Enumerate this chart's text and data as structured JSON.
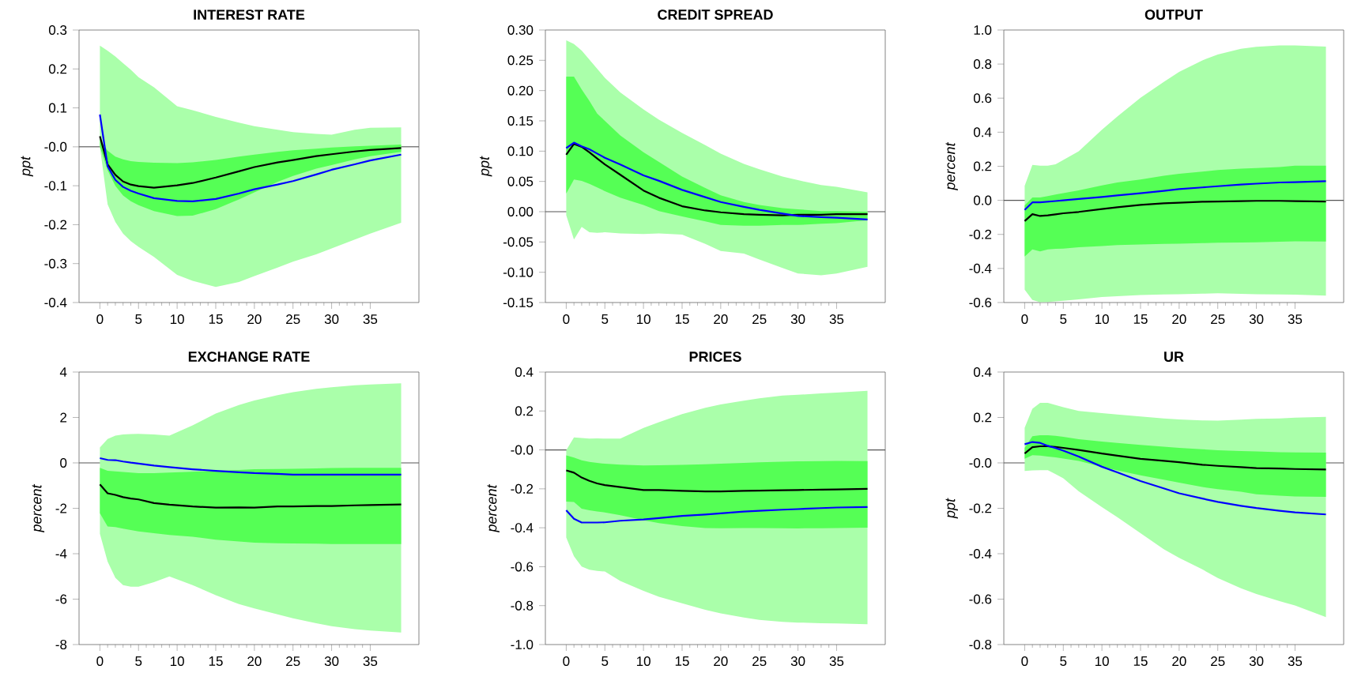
{
  "chart_data": [
    {
      "type": "line",
      "title": "INTEREST RATE",
      "ylabel": "ppt",
      "x": [
        0,
        1,
        2,
        3,
        4,
        5,
        7,
        10,
        12,
        15,
        18,
        20,
        23,
        25,
        28,
        30,
        33,
        35,
        39
      ],
      "xlim": [
        -2.7,
        41.3
      ],
      "xticks": [
        0,
        5,
        10,
        15,
        20,
        25,
        30,
        35
      ],
      "ylim": [
        -0.4,
        0.3
      ],
      "yticks": [
        {
          "value": -0.4,
          "label": "-0.4"
        },
        {
          "value": -0.3,
          "label": "-0.3"
        },
        {
          "value": -0.2,
          "label": "-0.2"
        },
        {
          "value": -0.1,
          "label": "-0.1"
        },
        {
          "value": 0,
          "label": "-0.0"
        },
        {
          "value": 0.1,
          "label": "0.1"
        },
        {
          "value": 0.2,
          "label": "0.2"
        },
        {
          "value": 0.3,
          "label": "0.3"
        }
      ],
      "ref_lines": [
        {
          "axis": "y",
          "value": 0,
          "color": "#555555"
        }
      ],
      "series": [
        {
          "color": "#aaffaa",
          "values": [
            null,
            null,
            null,
            null,
            null,
            null,
            null,
            null,
            null,
            null,
            null,
            null,
            null,
            null,
            null,
            null,
            null,
            null,
            null
          ],
          "upper": [
            0.26,
            0.247,
            0.232,
            0.215,
            0.198,
            0.179,
            0.153,
            0.104,
            0.094,
            0.077,
            0.062,
            0.053,
            0.044,
            0.038,
            0.033,
            0.031,
            0.044,
            0.049,
            0.05
          ],
          "lower": [
            0.0,
            -0.148,
            -0.193,
            -0.223,
            -0.242,
            -0.257,
            -0.283,
            -0.329,
            -0.344,
            -0.36,
            -0.347,
            -0.332,
            -0.31,
            -0.295,
            -0.276,
            -0.261,
            -0.238,
            -0.223,
            -0.195
          ]
        },
        {
          "color": "#55ff55",
          "values": [
            null,
            null,
            null,
            null,
            null,
            null,
            null,
            null,
            null,
            null,
            null,
            null,
            null,
            null,
            null,
            null,
            null,
            null,
            null
          ],
          "upper": [
            0.02,
            -0.01,
            -0.025,
            -0.032,
            -0.037,
            -0.039,
            -0.041,
            -0.042,
            -0.04,
            -0.034,
            -0.025,
            -0.02,
            -0.013,
            -0.009,
            -0.005,
            -0.002,
            0.001,
            0.003,
            0.006
          ],
          "lower": [
            0.0,
            -0.06,
            -0.1,
            -0.125,
            -0.14,
            -0.15,
            -0.165,
            -0.178,
            -0.177,
            -0.16,
            -0.135,
            -0.117,
            -0.09,
            -0.075,
            -0.056,
            -0.047,
            -0.032,
            -0.024,
            -0.013
          ]
        },
        {
          "color": "#000000",
          "values": [
            0.027,
            -0.045,
            -0.072,
            -0.089,
            -0.097,
            -0.101,
            -0.105,
            -0.099,
            -0.093,
            -0.079,
            -0.063,
            -0.052,
            -0.04,
            -0.034,
            -0.024,
            -0.019,
            -0.012,
            -0.008,
            -0.003
          ]
        },
        {
          "color": "#0000ff",
          "values": [
            0.083,
            -0.05,
            -0.085,
            -0.103,
            -0.113,
            -0.12,
            -0.132,
            -0.139,
            -0.14,
            -0.134,
            -0.12,
            -0.109,
            -0.097,
            -0.088,
            -0.071,
            -0.059,
            -0.045,
            -0.035,
            -0.02
          ]
        }
      ]
    },
    {
      "type": "line",
      "title": "CREDIT SPREAD",
      "ylabel": "ppt",
      "x": [
        0,
        1,
        2,
        3,
        4,
        5,
        7,
        10,
        12,
        15,
        18,
        20,
        23,
        25,
        28,
        30,
        33,
        35,
        39
      ],
      "xlim": [
        -2.7,
        41.3
      ],
      "xticks": [
        0,
        5,
        10,
        15,
        20,
        25,
        30,
        35
      ],
      "ylim": [
        -0.15,
        0.3
      ],
      "yticks": [
        {
          "value": -0.15,
          "label": "-0.15"
        },
        {
          "value": -0.1,
          "label": "-0.10"
        },
        {
          "value": -0.05,
          "label": "-0.05"
        },
        {
          "value": 0,
          "label": "0.00"
        },
        {
          "value": 0.05,
          "label": "0.05"
        },
        {
          "value": 0.1,
          "label": "0.10"
        },
        {
          "value": 0.15,
          "label": "0.15"
        },
        {
          "value": 0.2,
          "label": "0.20"
        },
        {
          "value": 0.25,
          "label": "0.25"
        },
        {
          "value": 0.3,
          "label": "0.30"
        }
      ],
      "ref_lines": [
        {
          "axis": "y",
          "value": 0,
          "color": "#555555"
        }
      ],
      "series": [
        {
          "color": "#aaffaa",
          "values": [
            null,
            null,
            null,
            null,
            null,
            null,
            null,
            null,
            null,
            null,
            null,
            null,
            null,
            null,
            null,
            null,
            null,
            null,
            null
          ],
          "upper": [
            0.283,
            0.277,
            0.266,
            0.251,
            0.236,
            0.221,
            0.197,
            0.169,
            0.152,
            0.13,
            0.11,
            0.096,
            0.079,
            0.07,
            0.058,
            0.052,
            0.044,
            0.041,
            0.032
          ],
          "lower": [
            -0.006,
            -0.046,
            -0.025,
            -0.034,
            -0.035,
            -0.034,
            -0.036,
            -0.037,
            -0.036,
            -0.038,
            -0.053,
            -0.065,
            -0.069,
            -0.079,
            -0.093,
            -0.102,
            -0.105,
            -0.102,
            -0.091
          ]
        },
        {
          "color": "#55ff55",
          "values": [
            null,
            null,
            null,
            null,
            null,
            null,
            null,
            null,
            null,
            null,
            null,
            null,
            null,
            null,
            null,
            null,
            null,
            null,
            null
          ],
          "upper": [
            0.223,
            0.223,
            0.202,
            0.183,
            0.162,
            0.15,
            0.126,
            0.098,
            0.082,
            0.058,
            0.039,
            0.027,
            0.016,
            0.011,
            0.006,
            0.004,
            0.001,
            0.001,
            0.0
          ],
          "lower": [
            0.03,
            0.053,
            0.051,
            0.046,
            0.04,
            0.034,
            0.023,
            0.011,
            0.001,
            -0.008,
            -0.016,
            -0.022,
            -0.023,
            -0.023,
            -0.022,
            -0.022,
            -0.02,
            -0.019,
            -0.014
          ]
        },
        {
          "color": "#000000",
          "values": [
            0.094,
            0.112,
            0.107,
            0.098,
            0.088,
            0.078,
            0.061,
            0.035,
            0.023,
            0.009,
            0.002,
            -0.001,
            -0.004,
            -0.005,
            -0.006,
            -0.005,
            -0.005,
            -0.004,
            -0.004
          ]
        },
        {
          "color": "#0000ff",
          "values": [
            0.105,
            0.114,
            0.108,
            0.103,
            0.096,
            0.089,
            0.078,
            0.06,
            0.051,
            0.036,
            0.024,
            0.016,
            0.008,
            0.003,
            -0.003,
            -0.007,
            -0.009,
            -0.01,
            -0.013
          ]
        }
      ]
    },
    {
      "type": "line",
      "title": "OUTPUT",
      "ylabel": "percent",
      "x": [
        0,
        1,
        2,
        3,
        4,
        5,
        7,
        10,
        12,
        15,
        18,
        20,
        23,
        25,
        28,
        30,
        33,
        35,
        39
      ],
      "xlim": [
        -2.7,
        41.3
      ],
      "xticks": [
        0,
        5,
        10,
        15,
        20,
        25,
        30,
        35
      ],
      "ylim": [
        -0.6,
        1.0
      ],
      "yticks": [
        {
          "value": -0.6,
          "label": "-0.6"
        },
        {
          "value": -0.4,
          "label": "-0.4"
        },
        {
          "value": -0.2,
          "label": "-0.2"
        },
        {
          "value": 0,
          "label": "0.0"
        },
        {
          "value": 0.2,
          "label": "0.2"
        },
        {
          "value": 0.4,
          "label": "0.4"
        },
        {
          "value": 0.6,
          "label": "0.6"
        },
        {
          "value": 0.8,
          "label": "0.8"
        },
        {
          "value": 1.0,
          "label": "1.0"
        }
      ],
      "ref_lines": [
        {
          "axis": "y",
          "value": 0,
          "color": "#555555"
        }
      ],
      "series": [
        {
          "color": "#aaffaa",
          "values": [
            null,
            null,
            null,
            null,
            null,
            null,
            null,
            null,
            null,
            null,
            null,
            null,
            null,
            null,
            null,
            null,
            null,
            null,
            null
          ],
          "upper": [
            0.085,
            0.208,
            0.203,
            0.203,
            0.212,
            0.237,
            0.288,
            0.415,
            0.492,
            0.602,
            0.695,
            0.754,
            0.822,
            0.856,
            0.89,
            0.902,
            0.91,
            0.91,
            0.903
          ],
          "lower": [
            -0.525,
            -0.585,
            -0.598,
            -0.597,
            -0.593,
            -0.59,
            -0.581,
            -0.568,
            -0.563,
            -0.556,
            -0.553,
            -0.551,
            -0.548,
            -0.546,
            -0.549,
            -0.551,
            -0.553,
            -0.554,
            -0.559
          ]
        },
        {
          "color": "#55ff55",
          "values": [
            null,
            null,
            null,
            null,
            null,
            null,
            null,
            null,
            null,
            null,
            null,
            null,
            null,
            null,
            null,
            null,
            null,
            null,
            null
          ],
          "upper": [
            -0.03,
            0.017,
            0.017,
            0.025,
            0.034,
            0.042,
            0.059,
            0.088,
            0.105,
            0.122,
            0.144,
            0.156,
            0.169,
            0.178,
            0.186,
            0.19,
            0.195,
            0.203,
            0.203
          ],
          "lower": [
            -0.33,
            -0.288,
            -0.3,
            -0.288,
            -0.285,
            -0.283,
            -0.275,
            -0.268,
            -0.263,
            -0.259,
            -0.256,
            -0.254,
            -0.251,
            -0.249,
            -0.247,
            -0.246,
            -0.243,
            -0.241,
            -0.242
          ]
        },
        {
          "color": "#000000",
          "values": [
            -0.122,
            -0.081,
            -0.092,
            -0.088,
            -0.082,
            -0.076,
            -0.068,
            -0.051,
            -0.041,
            -0.027,
            -0.017,
            -0.014,
            -0.008,
            -0.007,
            -0.005,
            -0.003,
            -0.003,
            -0.005,
            -0.007
          ]
        },
        {
          "color": "#0000ff",
          "values": [
            -0.056,
            -0.012,
            -0.012,
            -0.008,
            -0.004,
            0.0,
            0.008,
            0.02,
            0.029,
            0.042,
            0.056,
            0.066,
            0.076,
            0.083,
            0.093,
            0.098,
            0.105,
            0.107,
            0.112
          ]
        }
      ]
    },
    {
      "type": "line",
      "title": "EXCHANGE RATE",
      "ylabel": "percent",
      "x": [
        0,
        1,
        2,
        3,
        4,
        5,
        7,
        9,
        12,
        15,
        18,
        20,
        23,
        25,
        28,
        30,
        33,
        35,
        39
      ],
      "xlim": [
        -2.7,
        41.3
      ],
      "xticks": [
        0,
        5,
        10,
        15,
        20,
        25,
        30,
        35
      ],
      "ylim": [
        -8,
        4
      ],
      "yticks": [
        -8,
        -6,
        -4,
        -2,
        0,
        2,
        4
      ],
      "ref_lines": [
        {
          "axis": "y",
          "value": 0,
          "color": "#555555"
        }
      ],
      "series": [
        {
          "color": "#aaffaa",
          "values": [
            null,
            null,
            null,
            null,
            null,
            null,
            null,
            null,
            null,
            null,
            null,
            null,
            null,
            null,
            null,
            null,
            null,
            null,
            null
          ],
          "upper": [
            0.68,
            1.05,
            1.2,
            1.25,
            1.27,
            1.28,
            1.25,
            1.2,
            1.65,
            2.17,
            2.55,
            2.75,
            2.98,
            3.11,
            3.26,
            3.33,
            3.42,
            3.45,
            3.5
          ],
          "lower": [
            -3.12,
            -4.35,
            -5.06,
            -5.38,
            -5.45,
            -5.45,
            -5.25,
            -5.0,
            -5.38,
            -5.83,
            -6.22,
            -6.41,
            -6.67,
            -6.84,
            -7.06,
            -7.19,
            -7.32,
            -7.38,
            -7.47
          ]
        },
        {
          "color": "#55ff55",
          "values": [
            null,
            null,
            null,
            null,
            null,
            null,
            null,
            null,
            null,
            null,
            null,
            null,
            null,
            null,
            null,
            null,
            null,
            null,
            null
          ],
          "upper": [
            -0.22,
            -0.35,
            -0.37,
            -0.4,
            -0.43,
            -0.45,
            -0.45,
            -0.43,
            -0.39,
            -0.35,
            -0.31,
            -0.28,
            -0.27,
            -0.26,
            -0.24,
            -0.23,
            -0.22,
            -0.22,
            -0.22
          ],
          "lower": [
            -2.22,
            -2.8,
            -2.83,
            -2.9,
            -2.96,
            -3.02,
            -3.1,
            -3.17,
            -3.25,
            -3.38,
            -3.46,
            -3.51,
            -3.54,
            -3.55,
            -3.56,
            -3.57,
            -3.57,
            -3.57,
            -3.57
          ]
        },
        {
          "color": "#000000",
          "values": [
            -0.95,
            -1.34,
            -1.41,
            -1.51,
            -1.57,
            -1.61,
            -1.77,
            -1.84,
            -1.92,
            -1.97,
            -1.96,
            -1.97,
            -1.92,
            -1.92,
            -1.9,
            -1.9,
            -1.87,
            -1.86,
            -1.83
          ]
        },
        {
          "color": "#0000ff",
          "values": [
            0.21,
            0.13,
            0.12,
            0.06,
            0.01,
            -0.03,
            -0.12,
            -0.19,
            -0.28,
            -0.35,
            -0.41,
            -0.45,
            -0.48,
            -0.52,
            -0.52,
            -0.52,
            -0.52,
            -0.52,
            -0.52
          ]
        }
      ]
    },
    {
      "type": "line",
      "title": "PRICES",
      "ylabel": "percent",
      "x": [
        0,
        1,
        2,
        3,
        4,
        5,
        7,
        10,
        12,
        15,
        18,
        20,
        23,
        25,
        28,
        30,
        33,
        35,
        39
      ],
      "xlim": [
        -2.7,
        41.3
      ],
      "xticks": [
        0,
        5,
        10,
        15,
        20,
        25,
        30,
        35
      ],
      "ylim": [
        -1.0,
        0.4
      ],
      "yticks": [
        {
          "value": -1.0,
          "label": "-1.0"
        },
        {
          "value": -0.8,
          "label": "-0.8"
        },
        {
          "value": -0.6,
          "label": "-0.6"
        },
        {
          "value": -0.4,
          "label": "-0.4"
        },
        {
          "value": -0.2,
          "label": "-0.2"
        },
        {
          "value": 0,
          "label": "-0.0"
        },
        {
          "value": 0.2,
          "label": "0.2"
        },
        {
          "value": 0.4,
          "label": "0.4"
        }
      ],
      "ref_lines": [
        {
          "axis": "y",
          "value": 0,
          "color": "#555555"
        }
      ],
      "series": [
        {
          "color": "#aaffaa",
          "values": [
            null,
            null,
            null,
            null,
            null,
            null,
            null,
            null,
            null,
            null,
            null,
            null,
            null,
            null,
            null,
            null,
            null,
            null,
            null
          ],
          "upper": [
            -0.002,
            0.064,
            0.061,
            0.058,
            0.059,
            0.058,
            0.058,
            0.113,
            0.142,
            0.184,
            0.216,
            0.234,
            0.253,
            0.265,
            0.279,
            0.283,
            0.29,
            0.295,
            0.304
          ],
          "lower": [
            -0.45,
            -0.547,
            -0.599,
            -0.616,
            -0.622,
            -0.625,
            -0.673,
            -0.724,
            -0.754,
            -0.788,
            -0.821,
            -0.84,
            -0.861,
            -0.873,
            -0.883,
            -0.887,
            -0.89,
            -0.891,
            -0.895
          ]
        },
        {
          "color": "#55ff55",
          "values": [
            null,
            null,
            null,
            null,
            null,
            null,
            null,
            null,
            null,
            null,
            null,
            null,
            null,
            null,
            null,
            null,
            null,
            null,
            null
          ],
          "upper": [
            -0.028,
            -0.039,
            -0.053,
            -0.062,
            -0.067,
            -0.071,
            -0.076,
            -0.08,
            -0.079,
            -0.077,
            -0.074,
            -0.071,
            -0.067,
            -0.064,
            -0.061,
            -0.059,
            -0.058,
            -0.057,
            -0.058
          ],
          "lower": [
            -0.265,
            -0.268,
            -0.302,
            -0.31,
            -0.316,
            -0.321,
            -0.336,
            -0.361,
            -0.376,
            -0.391,
            -0.401,
            -0.402,
            -0.401,
            -0.401,
            -0.402,
            -0.403,
            -0.402,
            -0.401,
            -0.399
          ]
        },
        {
          "color": "#000000",
          "values": [
            -0.105,
            -0.117,
            -0.142,
            -0.159,
            -0.172,
            -0.181,
            -0.191,
            -0.206,
            -0.206,
            -0.21,
            -0.213,
            -0.213,
            -0.21,
            -0.209,
            -0.207,
            -0.206,
            -0.204,
            -0.203,
            -0.2
          ]
        },
        {
          "color": "#0000ff",
          "values": [
            -0.31,
            -0.354,
            -0.373,
            -0.373,
            -0.373,
            -0.372,
            -0.364,
            -0.357,
            -0.35,
            -0.339,
            -0.332,
            -0.326,
            -0.317,
            -0.313,
            -0.307,
            -0.304,
            -0.299,
            -0.296,
            -0.293
          ]
        }
      ]
    },
    {
      "type": "line",
      "title": "UR",
      "ylabel": "ppt",
      "x": [
        0,
        1,
        2,
        3,
        4,
        5,
        7,
        10,
        12,
        15,
        18,
        20,
        23,
        25,
        28,
        30,
        33,
        35,
        39
      ],
      "xlim": [
        -2.7,
        41.3
      ],
      "xticks": [
        0,
        5,
        10,
        15,
        20,
        25,
        30,
        35
      ],
      "ylim": [
        -0.8,
        0.4
      ],
      "yticks": [
        {
          "value": -0.8,
          "label": "-0.8"
        },
        {
          "value": -0.6,
          "label": "-0.6"
        },
        {
          "value": -0.4,
          "label": "-0.4"
        },
        {
          "value": -0.2,
          "label": "-0.2"
        },
        {
          "value": 0,
          "label": "-0.0"
        },
        {
          "value": 0.2,
          "label": "0.2"
        },
        {
          "value": 0.4,
          "label": "0.4"
        }
      ],
      "ref_lines": [
        {
          "axis": "y",
          "value": 0,
          "color": "#555555"
        }
      ],
      "series": [
        {
          "color": "#aaffaa",
          "values": [
            null,
            null,
            null,
            null,
            null,
            null,
            null,
            null,
            null,
            null,
            null,
            null,
            null,
            null,
            null,
            null,
            null,
            null,
            null
          ],
          "upper": [
            0.155,
            0.238,
            0.264,
            0.264,
            0.255,
            0.245,
            0.229,
            0.219,
            0.213,
            0.204,
            0.196,
            0.191,
            0.187,
            0.186,
            0.19,
            0.194,
            0.196,
            0.199,
            0.203
          ],
          "lower": [
            -0.036,
            -0.033,
            -0.032,
            -0.032,
            -0.05,
            -0.068,
            -0.125,
            -0.195,
            -0.239,
            -0.31,
            -0.38,
            -0.418,
            -0.469,
            -0.507,
            -0.552,
            -0.577,
            -0.609,
            -0.628,
            -0.679
          ]
        },
        {
          "color": "#55ff55",
          "values": [
            null,
            null,
            null,
            null,
            null,
            null,
            null,
            null,
            null,
            null,
            null,
            null,
            null,
            null,
            null,
            null,
            null,
            null,
            null
          ],
          "upper": [
            0.066,
            0.117,
            0.122,
            0.122,
            0.119,
            0.115,
            0.104,
            0.094,
            0.088,
            0.079,
            0.071,
            0.066,
            0.06,
            0.056,
            0.052,
            0.05,
            0.047,
            0.046,
            0.045
          ],
          "lower": [
            0.018,
            0.034,
            0.032,
            0.028,
            0.024,
            0.019,
            0.009,
            -0.017,
            -0.033,
            -0.055,
            -0.074,
            -0.087,
            -0.106,
            -0.116,
            -0.127,
            -0.138,
            -0.144,
            -0.148,
            -0.15
          ]
        },
        {
          "color": "#000000",
          "values": [
            0.041,
            0.069,
            0.073,
            0.073,
            0.07,
            0.066,
            0.057,
            0.041,
            0.032,
            0.018,
            0.009,
            0.003,
            -0.008,
            -0.013,
            -0.019,
            -0.023,
            -0.025,
            -0.027,
            -0.029
          ]
        },
        {
          "color": "#0000ff",
          "values": [
            0.082,
            0.092,
            0.088,
            0.075,
            0.065,
            0.054,
            0.028,
            -0.017,
            -0.042,
            -0.08,
            -0.112,
            -0.134,
            -0.157,
            -0.172,
            -0.189,
            -0.199,
            -0.211,
            -0.218,
            -0.227
          ]
        }
      ]
    }
  ]
}
